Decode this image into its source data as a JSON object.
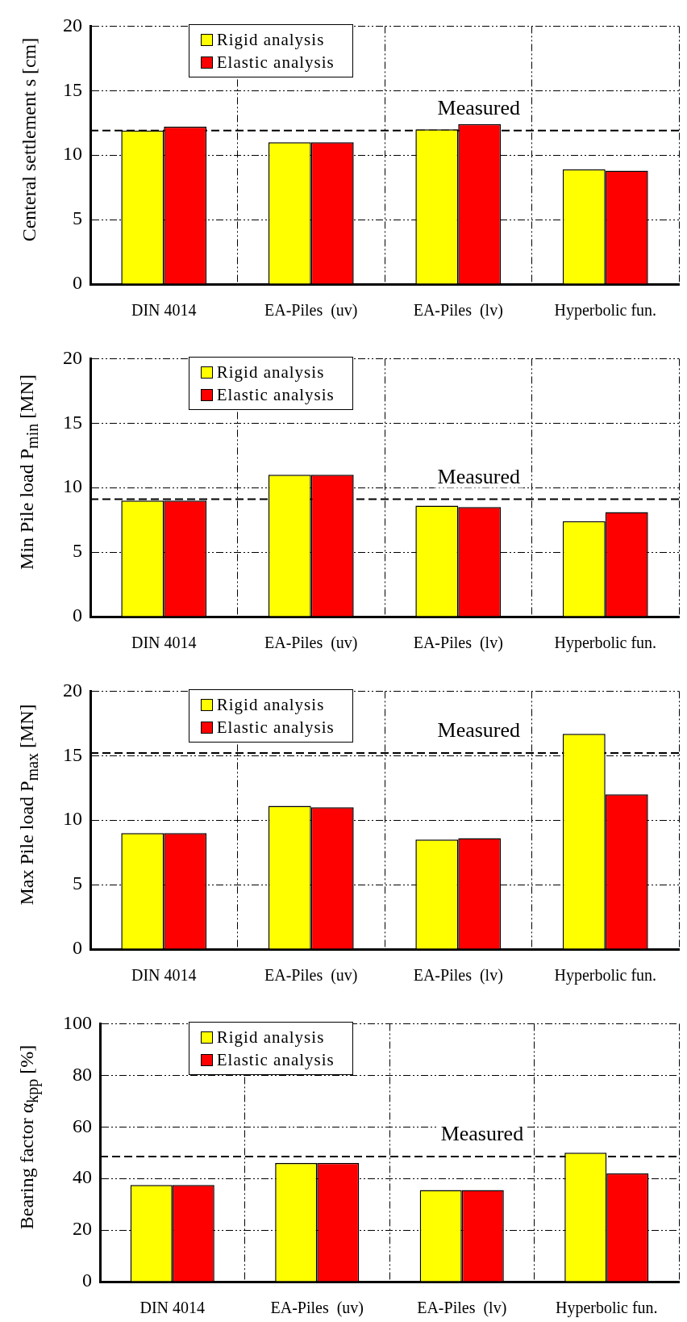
{
  "chart_data": [
    {
      "type": "bar",
      "ylabel": "Centeral settlement s [cm]",
      "categories": [
        "DIN 4014",
        "EA-Piles  (uv)",
        "EA-Piles  (lv)",
        "Hyperbolic fun."
      ],
      "series": [
        {
          "name": "Rigid analysis",
          "color": "#ffff00",
          "values": [
            11.9,
            11.0,
            12.0,
            8.9
          ]
        },
        {
          "name": "Elastic analysis",
          "color": "#ff0000",
          "values": [
            12.2,
            11.0,
            12.4,
            8.8
          ]
        }
      ],
      "ylim": [
        0,
        20
      ],
      "yticks": [
        0,
        5,
        10,
        15,
        20
      ],
      "grid": true,
      "legend": "top left",
      "ref_lines": [
        {
          "axis": "y",
          "value": 11.9,
          "label": "Measured",
          "line_style": "dashed",
          "color": "#000000"
        }
      ]
    },
    {
      "type": "bar",
      "ylabel": "Min Pile load P$_{min}$ [MN]",
      "categories": [
        "DIN 4014",
        "EA-Piles  (uv)",
        "EA-Piles  (lv)",
        "Hyperbolic fun."
      ],
      "series": [
        {
          "name": "Rigid analysis",
          "color": "#ffff00",
          "values": [
            9.0,
            11.0,
            8.6,
            7.4
          ]
        },
        {
          "name": "Elastic analysis",
          "color": "#ff0000",
          "values": [
            9.0,
            11.0,
            8.5,
            8.1
          ]
        }
      ],
      "ylim": [
        0,
        20
      ],
      "yticks": [
        0,
        5,
        10,
        15,
        20
      ],
      "grid": true,
      "legend": "top left",
      "ref_lines": [
        {
          "axis": "y",
          "value": 9.1,
          "label": "Measured",
          "line_style": "dashed",
          "color": "#000000"
        }
      ]
    },
    {
      "type": "bar",
      "ylabel": "Max Pile load P$_{max}$ [MN]",
      "categories": [
        "DIN 4014",
        "EA-Piles  (uv)",
        "EA-Piles  (lv)",
        "Hyperbolic fun."
      ],
      "series": [
        {
          "name": "Rigid analysis",
          "color": "#ffff00",
          "values": [
            9.0,
            11.1,
            8.5,
            16.7
          ]
        },
        {
          "name": "Elastic analysis",
          "color": "#ff0000",
          "values": [
            9.0,
            11.0,
            8.6,
            12.0
          ]
        }
      ],
      "ylim": [
        0,
        20
      ],
      "yticks": [
        0,
        5,
        10,
        15,
        20
      ],
      "grid": true,
      "legend": "top left",
      "ref_lines": [
        {
          "axis": "y",
          "value": 15.2,
          "label": "Measured",
          "line_style": "dashed",
          "color": "#000000"
        }
      ]
    },
    {
      "type": "bar",
      "ylabel": "Bearing factor α$_{kpp}$ [%]",
      "categories": [
        "DIN 4014",
        "EA-Piles  (uv)",
        "EA-Piles  (lv)",
        "Hyperbolic fun."
      ],
      "series": [
        {
          "name": "Rigid analysis",
          "color": "#ffff00",
          "values": [
            37.5,
            46,
            35.5,
            50
          ]
        },
        {
          "name": "Elastic analysis",
          "color": "#ff0000",
          "values": [
            37.5,
            46,
            35.5,
            42
          ]
        }
      ],
      "ylim": [
        0,
        100
      ],
      "yticks": [
        0,
        20,
        40,
        60,
        80,
        100
      ],
      "grid": true,
      "legend": "top left",
      "ref_lines": [
        {
          "axis": "y",
          "value": 48.5,
          "label": "Measured",
          "line_style": "dashed",
          "color": "#000000"
        }
      ]
    }
  ]
}
